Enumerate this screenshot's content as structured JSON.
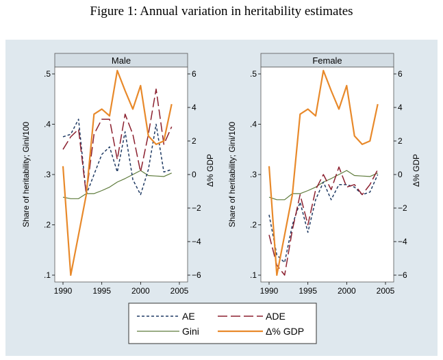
{
  "figure": {
    "title": "Figure 1: Annual variation in heritability estimates"
  },
  "colors": {
    "background": "#dfe8ee",
    "strip": "#d3dde4",
    "ae": "#1f3a63",
    "ade": "#8b1f2e",
    "gini": "#5d7a3a",
    "gdp": "#e8892a"
  },
  "legend": {
    "ae": "AE",
    "ade": "ADE",
    "gini": "Gini",
    "gdp": "Δ% GDP"
  },
  "chart_data": [
    {
      "type": "line",
      "title": "Male",
      "ylabel": "Share of heritability;  Gini/100",
      "y2label": "Δ% GDP",
      "xlabel": "",
      "xlim": [
        1990,
        2005
      ],
      "xticks": [
        1990,
        1995,
        2000,
        2005
      ],
      "ylim": [
        0.1,
        0.5
      ],
      "yticks": [
        0.1,
        0.2,
        0.3,
        0.4,
        0.5
      ],
      "ytick_labels": [
        ".1",
        ".2",
        ".3",
        ".4",
        ".5"
      ],
      "y2lim": [
        -6,
        6
      ],
      "y2ticks": [
        -6,
        -4,
        -2,
        0,
        2,
        4,
        6
      ],
      "y2tick_labels": [
        "−6",
        "−4",
        "−2",
        "0",
        "2",
        "4",
        "6"
      ],
      "x": [
        1990,
        1991,
        1992,
        1993,
        1994,
        1995,
        1996,
        1997,
        1998,
        1999,
        2000,
        2001,
        2002,
        2003,
        2004
      ],
      "series": [
        {
          "name": "AE",
          "axis": "left",
          "values": [
            0.375,
            0.38,
            0.41,
            0.26,
            0.3,
            0.34,
            0.355,
            0.305,
            0.385,
            0.29,
            0.26,
            0.31,
            0.4,
            0.305,
            0.31
          ]
        },
        {
          "name": "ADE",
          "axis": "left",
          "values": [
            0.35,
            0.375,
            0.39,
            0.26,
            0.38,
            0.41,
            0.41,
            0.33,
            0.42,
            0.38,
            0.305,
            0.38,
            0.47,
            0.36,
            0.395
          ]
        },
        {
          "name": "Gini",
          "axis": "left",
          "values": [
            0.255,
            0.252,
            0.252,
            0.262,
            0.262,
            0.268,
            0.275,
            0.285,
            0.292,
            0.3,
            0.308,
            0.298,
            0.297,
            0.296,
            0.303
          ]
        },
        {
          "name": "Δ% GDP",
          "axis": "right",
          "values": [
            0.5,
            -6.0,
            -3.6,
            -1.2,
            3.6,
            3.9,
            3.5,
            6.2,
            5.0,
            3.9,
            5.3,
            2.3,
            1.8,
            2.0,
            4.2
          ]
        }
      ]
    },
    {
      "type": "line",
      "title": "Female",
      "ylabel": "Share of heritability;  Gini/100",
      "y2label": "Δ% GDP",
      "xlabel": "",
      "xlim": [
        1990,
        2005
      ],
      "xticks": [
        1990,
        1995,
        2000,
        2005
      ],
      "ylim": [
        0.1,
        0.5
      ],
      "yticks": [
        0.1,
        0.2,
        0.3,
        0.4,
        0.5
      ],
      "ytick_labels": [
        ".1",
        ".2",
        ".3",
        ".4",
        ".5"
      ],
      "y2lim": [
        -6,
        6
      ],
      "y2ticks": [
        -6,
        -4,
        -2,
        0,
        2,
        4,
        6
      ],
      "y2tick_labels": [
        "−6",
        "−4",
        "−2",
        "0",
        "2",
        "4",
        "6"
      ],
      "x": [
        1990,
        1991,
        1992,
        1993,
        1994,
        1995,
        1996,
        1997,
        1998,
        1999,
        2000,
        2001,
        2002,
        2003,
        2004
      ],
      "series": [
        {
          "name": "AE",
          "axis": "left",
          "values": [
            0.22,
            0.14,
            0.125,
            0.2,
            0.245,
            0.185,
            0.25,
            0.285,
            0.25,
            0.28,
            0.28,
            0.275,
            0.26,
            0.265,
            0.3
          ]
        },
        {
          "name": "ADE",
          "axis": "left",
          "values": [
            0.18,
            0.12,
            0.1,
            0.19,
            0.26,
            0.2,
            0.27,
            0.3,
            0.27,
            0.315,
            0.275,
            0.28,
            0.26,
            0.28,
            0.31
          ]
        },
        {
          "name": "Gini",
          "axis": "left",
          "values": [
            0.255,
            0.25,
            0.25,
            0.262,
            0.262,
            0.268,
            0.275,
            0.285,
            0.292,
            0.3,
            0.308,
            0.298,
            0.297,
            0.296,
            0.303
          ]
        },
        {
          "name": "Δ% GDP",
          "axis": "right",
          "values": [
            0.5,
            -6.0,
            -3.6,
            -1.2,
            3.6,
            3.9,
            3.5,
            6.2,
            5.0,
            3.9,
            5.3,
            2.3,
            1.8,
            2.0,
            4.2
          ]
        }
      ]
    }
  ]
}
